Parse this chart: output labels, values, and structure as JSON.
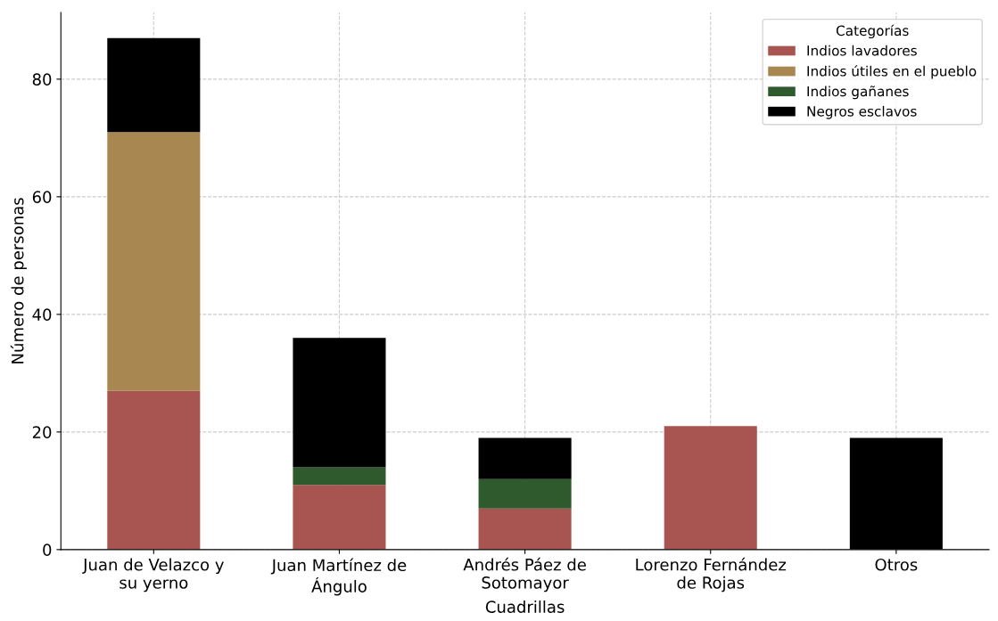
{
  "chart_data": {
    "type": "bar",
    "stacked": true,
    "xlabel": "Cuadrillas",
    "ylabel": "Número de personas",
    "categories": [
      "Juan de Velazco y\nsu yerno",
      "Juan Martínez de\nÁngulo",
      "Andrés Páez de\nSotomayor",
      "Lorenzo Fernández\nde Rojas",
      "Otros"
    ],
    "series": [
      {
        "name": "Indios lavadores",
        "color": "#a85450",
        "values": [
          27,
          11,
          7,
          21,
          0
        ]
      },
      {
        "name": "Indios útiles en el pueblo",
        "color": "#a88850",
        "values": [
          44,
          0,
          0,
          0,
          0
        ]
      },
      {
        "name": "Indios gañanes",
        "color": "#2e5a2e",
        "values": [
          0,
          3,
          5,
          0,
          0
        ]
      },
      {
        "name": "Negros esclavos",
        "color": "#000000",
        "values": [
          16,
          22,
          7,
          0,
          19
        ]
      }
    ],
    "legend_title": "Categorías",
    "legend": "top right",
    "ylim": [
      0,
      91.35
    ],
    "yticks": [
      0,
      20,
      40,
      60,
      80
    ],
    "grid": true
  }
}
